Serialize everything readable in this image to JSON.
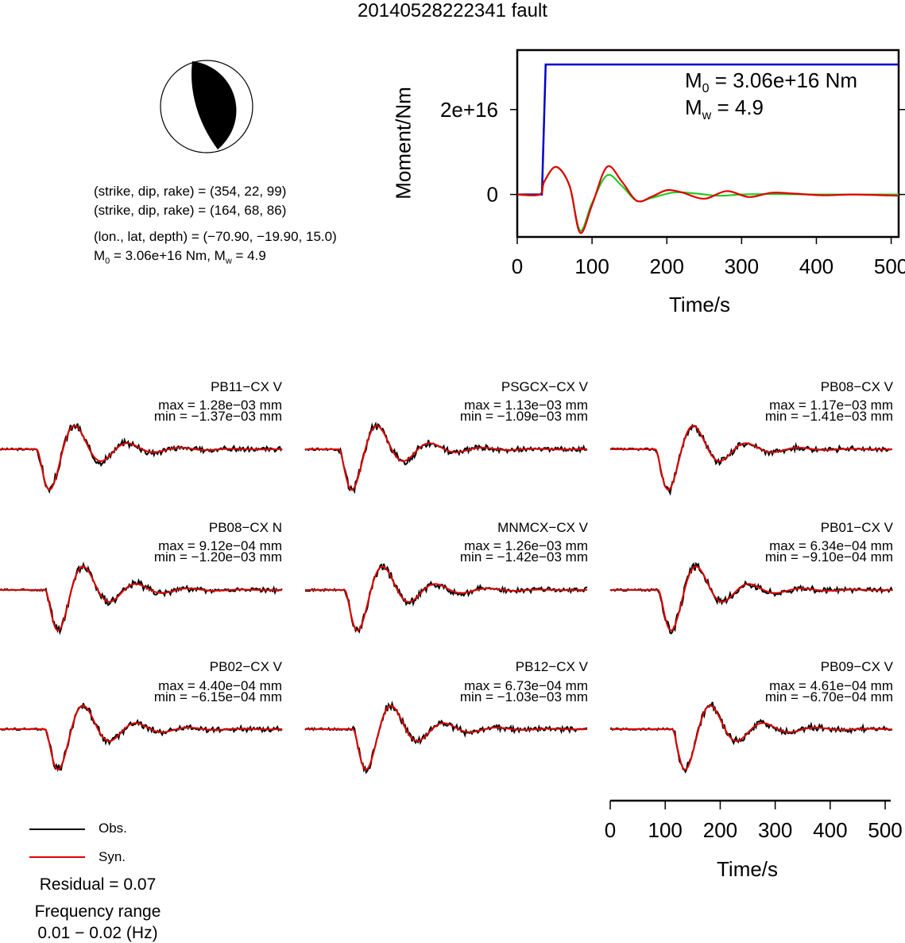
{
  "title": "20140528222341 fault",
  "focal_mechanism": {
    "plane1": "(strike, dip, rake) = (354, 22, 99)",
    "plane2": "(strike, dip, rake) = (164, 68, 86)",
    "location": "(lon., lat, depth) = (−70.90, −19.90, 15.0)",
    "moment_prefix": "M",
    "moment_sub": "0",
    "moment_value": " = 3.06e+16 Nm, M",
    "mw_sub": "w",
    "mw_value": " = 4.9"
  },
  "moment_plot": {
    "m0_prefix": "M",
    "m0_sub": "0",
    "m0_value": " = 3.06e+16 Nm",
    "mw_prefix": "M",
    "mw_sub": "w",
    "mw_value": " = 4.9",
    "ylabel": "Moment/Nm",
    "xlabel": "Time/s"
  },
  "waveform_axis": {
    "xlabel": "Time/s"
  },
  "legend": {
    "obs": "Obs.",
    "syn": "Syn."
  },
  "residual": "Residual = 0.07",
  "freq_title": "Frequency range",
  "freq_value": "0.01 − 0.02 (Hz)",
  "colors": {
    "obs": "#000000",
    "syn": "#e00000",
    "cumulative": "#0000cc",
    "stf_green": "#22cc22"
  },
  "stations": [
    {
      "name": "PB11−CX V",
      "max": "max = 1.28e−03 mm",
      "min": "min = −1.37e−03 mm"
    },
    {
      "name": "PSGCX−CX V",
      "max": "max = 1.13e−03 mm",
      "min": "min = −1.09e−03 mm"
    },
    {
      "name": "PB08−CX V",
      "max": "max = 1.17e−03 mm",
      "min": "min = −1.41e−03 mm"
    },
    {
      "name": "PB08−CX N",
      "max": "max = 9.12e−04 mm",
      "min": "min = −1.20e−03 mm"
    },
    {
      "name": "MNMCX−CX V",
      "max": "max = 1.26e−03 mm",
      "min": "min = −1.42e−03 mm"
    },
    {
      "name": "PB01−CX V",
      "max": "max = 6.34e−04 mm",
      "min": "min = −9.10e−04 mm"
    },
    {
      "name": "PB02−CX V",
      "max": "max = 4.40e−04 mm",
      "min": "min = −6.15e−04 mm"
    },
    {
      "name": "PB12−CX V",
      "max": "max = 6.73e−04 mm",
      "min": "min = −1.03e−03 mm"
    },
    {
      "name": "PB09−CX V",
      "max": "max = 4.61e−04 mm",
      "min": "min = −6.70e−04 mm"
    }
  ],
  "chart_data": [
    {
      "type": "line",
      "xlabel": "Time/s",
      "ylabel": "Moment/Nm",
      "xlim": [
        0,
        510
      ],
      "ylim": [
        -1e+16,
        3.4e+16
      ],
      "xticks": [
        0,
        100,
        200,
        300,
        400,
        500
      ],
      "yticks": [
        {
          "value": 0,
          "label": "0"
        },
        {
          "value": 2e+16,
          "label": "2e+16"
        }
      ],
      "series": [
        {
          "color": "#0000cc",
          "x": [
            0,
            33,
            38,
            510
          ],
          "y": [
            0,
            0,
            3.06e+16,
            3.06e+16
          ]
        },
        {
          "color": "#22cc22",
          "x": [
            0,
            30,
            36,
            52,
            70,
            84,
            100,
            120,
            140,
            160,
            180,
            210,
            240,
            270,
            300,
            340,
            400,
            510
          ],
          "y": [
            0,
            0,
            3000000000000000.0,
            6500000000000000.0,
            2000000000000000.0,
            -8500000000000000.0,
            -2000000000000000.0,
            4500000000000000.0,
            2000000000000000.0,
            -1500000000000000.0,
            -800000000000000.0,
            500000000000000.0,
            200000000000000.0,
            -300000000000000.0,
            0.0,
            100000000000000.0,
            0.0,
            0.0
          ]
        },
        {
          "color": "#e00000",
          "x": [
            0,
            30,
            36,
            52,
            70,
            84,
            100,
            120,
            140,
            160,
            180,
            200,
            220,
            250,
            280,
            310,
            340,
            370,
            410,
            450,
            510
          ],
          "y": [
            0,
            0,
            3000000000000000.0,
            6500000000000000.0,
            2000000000000000.0,
            -9000000000000000.0,
            -2500000000000000.0,
            6500000000000000.0,
            3000000000000000.0,
            -1500000000000000.0,
            -500000000000000.0,
            1000000000000000.0,
            500000000000000.0,
            -1000000000000000.0,
            800000000000000.0,
            -600000000000000.0,
            400000000000000.0,
            200000000000000.0,
            -200000000000000.0,
            0.0,
            -300000000000000.0
          ]
        }
      ]
    },
    {
      "type": "line",
      "xlabel": "Time/s",
      "xlim": [
        0,
        510
      ],
      "xticks": [
        0,
        100,
        200,
        300,
        400,
        500
      ]
    }
  ]
}
